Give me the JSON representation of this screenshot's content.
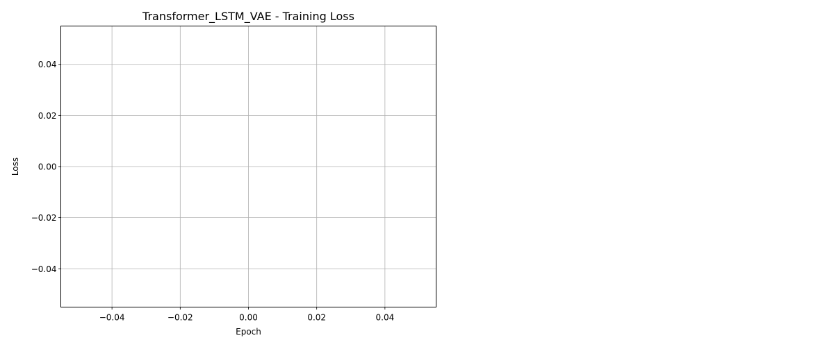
{
  "chart_data": {
    "type": "line",
    "title": "Transformer_LSTM_VAE - Training Loss",
    "xlabel": "Epoch",
    "ylabel": "Loss",
    "xlim": [
      -0.055,
      0.055
    ],
    "ylim": [
      -0.055,
      0.055
    ],
    "xticks": [
      {
        "value": -0.04,
        "label": "−0.04"
      },
      {
        "value": -0.02,
        "label": "−0.02"
      },
      {
        "value": 0.0,
        "label": "0.00"
      },
      {
        "value": 0.02,
        "label": "0.02"
      },
      {
        "value": 0.04,
        "label": "0.04"
      }
    ],
    "yticks": [
      {
        "value": 0.04,
        "label": "0.04"
      },
      {
        "value": 0.02,
        "label": "0.02"
      },
      {
        "value": 0.0,
        "label": "0.00"
      },
      {
        "value": -0.02,
        "label": "−0.02"
      },
      {
        "value": -0.04,
        "label": "−0.04"
      }
    ],
    "grid": true,
    "series": [
      {
        "x": [],
        "y": []
      }
    ]
  }
}
